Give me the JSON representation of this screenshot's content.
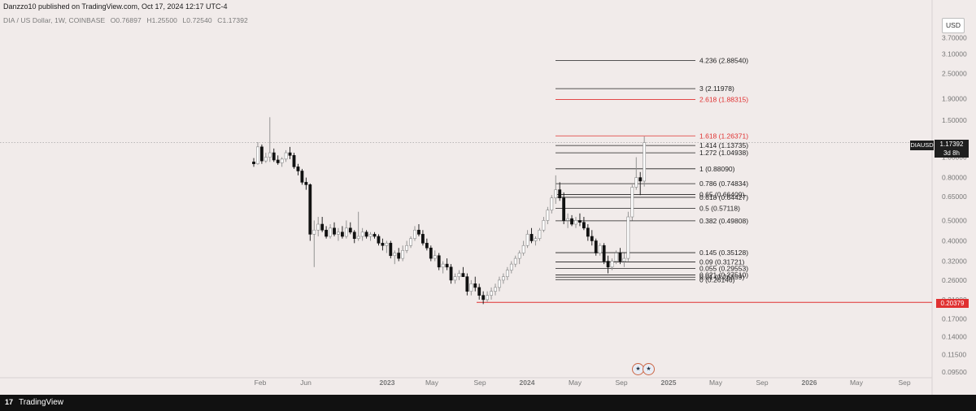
{
  "header": {
    "published": "Danzzo10 published on TradingView.com, Oct 17, 2024 12:17 UTC-4",
    "symbol_line": "DIA / US Dollar, 1W, COINBASE",
    "open": "O0.76897",
    "high": "H1.25500",
    "low": "L0.72540",
    "close": "C1.17392"
  },
  "currency_button": "USD",
  "price_tag": {
    "symbol": "DIAUSD",
    "value": "1.17392",
    "countdown": "3d 8h"
  },
  "low_tag": "0.20379",
  "footer": {
    "brand": "TradingView",
    "logo": "17"
  },
  "colors": {
    "bg": "#f1ebea",
    "candle": "#1a1a1a",
    "hollow": "#ffffff",
    "red": "#e03131",
    "fib": "#1f1f1f"
  },
  "chart_data": {
    "type": "candlestick",
    "y_scale": "log",
    "ylim": [
      0.08,
      4.2
    ],
    "y_ticks": [
      "3.70000",
      "3.10000",
      "2.50000",
      "1.90000",
      "1.50000",
      "1.00000",
      "0.80000",
      "0.65000",
      "0.50000",
      "0.40000",
      "0.32000",
      "0.26000",
      "0.21000",
      "0.17000",
      "0.14000",
      "0.11500",
      "0.09500"
    ],
    "x_ticks": [
      "Feb",
      "Jun",
      "2023",
      "May",
      "Sep",
      "2024",
      "May",
      "Sep",
      "2025",
      "May",
      "Sep",
      "2026",
      "May",
      "Sep"
    ],
    "current_price": 1.17392,
    "support_level": 0.20379,
    "fib_levels": [
      {
        "label": "4.236 (2.88540)",
        "value": 2.8854,
        "color": "#1f1f1f"
      },
      {
        "label": "3 (2.11978)",
        "value": 2.11978,
        "color": "#1f1f1f"
      },
      {
        "label": "2.618 (1.88315)",
        "value": 1.88315,
        "color": "#e03131"
      },
      {
        "label": "1.618 (1.26371)",
        "value": 1.26371,
        "color": "#e03131"
      },
      {
        "label": "1.414 (1.13735)",
        "value": 1.13735,
        "color": "#1f1f1f"
      },
      {
        "label": "1.272 (1.04938)",
        "value": 1.04938,
        "color": "#1f1f1f"
      },
      {
        "label": "1 (0.88090)",
        "value": 0.8809,
        "color": "#1f1f1f"
      },
      {
        "label": "0.786 (0.74834)",
        "value": 0.74834,
        "color": "#1f1f1f"
      },
      {
        "label": "0.65 (0.66409)",
        "value": 0.66409,
        "color": "#1f1f1f"
      },
      {
        "label": "0.618 (0.64427)",
        "value": 0.64427,
        "color": "#1f1f1f"
      },
      {
        "label": "0.5 (0.57118)",
        "value": 0.57118,
        "color": "#1f1f1f"
      },
      {
        "label": "0.382 (0.49808)",
        "value": 0.49808,
        "color": "#1f1f1f"
      },
      {
        "label": "0.145 (0.35128)",
        "value": 0.35128,
        "color": "#1f1f1f"
      },
      {
        "label": "0.09 (0.31721)",
        "value": 0.31721,
        "color": "#1f1f1f"
      },
      {
        "label": "0.055 (0.29553)",
        "value": 0.29553,
        "color": "#1f1f1f"
      },
      {
        "label": "0.021 (0.27510)",
        "value": 0.2751,
        "color": "#1f1f1f"
      },
      {
        "label": "0.01 (0.26859)",
        "value": 0.26859,
        "color": "#1f1f1f"
      },
      {
        "label": "0 (0.26146)",
        "value": 0.26146,
        "color": "#1f1f1f"
      }
    ],
    "candles_ohlc": [
      [
        0.95,
        0.99,
        0.9,
        0.93
      ],
      [
        0.93,
        1.18,
        0.92,
        1.12
      ],
      [
        1.12,
        1.15,
        0.93,
        0.96
      ],
      [
        0.96,
        1.05,
        0.94,
        1.0
      ],
      [
        1.0,
        1.55,
        0.95,
        1.05
      ],
      [
        1.05,
        1.1,
        0.95,
        0.97
      ],
      [
        0.97,
        1.02,
        0.92,
        0.94
      ],
      [
        0.94,
        1.0,
        0.9,
        0.98
      ],
      [
        0.98,
        1.08,
        0.95,
        1.05
      ],
      [
        1.05,
        1.12,
        0.98,
        1.02
      ],
      [
        1.02,
        1.05,
        0.88,
        0.9
      ],
      [
        0.9,
        0.93,
        0.82,
        0.86
      ],
      [
        0.86,
        0.88,
        0.74,
        0.76
      ],
      [
        0.76,
        0.8,
        0.7,
        0.74
      ],
      [
        0.74,
        0.75,
        0.4,
        0.43
      ],
      [
        0.43,
        0.5,
        0.3,
        0.45
      ],
      [
        0.45,
        0.52,
        0.42,
        0.48
      ],
      [
        0.48,
        0.52,
        0.44,
        0.45
      ],
      [
        0.45,
        0.47,
        0.41,
        0.42
      ],
      [
        0.42,
        0.48,
        0.41,
        0.46
      ],
      [
        0.46,
        0.49,
        0.42,
        0.43
      ],
      [
        0.43,
        0.46,
        0.4,
        0.44
      ],
      [
        0.44,
        0.47,
        0.41,
        0.42
      ],
      [
        0.42,
        0.5,
        0.41,
        0.46
      ],
      [
        0.46,
        0.49,
        0.43,
        0.44
      ],
      [
        0.44,
        0.45,
        0.39,
        0.41
      ],
      [
        0.41,
        0.55,
        0.4,
        0.42
      ],
      [
        0.42,
        0.46,
        0.4,
        0.44
      ],
      [
        0.44,
        0.45,
        0.41,
        0.42
      ],
      [
        0.42,
        0.44,
        0.4,
        0.43
      ],
      [
        0.43,
        0.44,
        0.41,
        0.42
      ],
      [
        0.42,
        0.43,
        0.38,
        0.39
      ],
      [
        0.39,
        0.41,
        0.36,
        0.38
      ],
      [
        0.38,
        0.4,
        0.35,
        0.39
      ],
      [
        0.39,
        0.4,
        0.33,
        0.34
      ],
      [
        0.34,
        0.36,
        0.31,
        0.35
      ],
      [
        0.35,
        0.37,
        0.32,
        0.33
      ],
      [
        0.33,
        0.38,
        0.32,
        0.36
      ],
      [
        0.36,
        0.4,
        0.35,
        0.38
      ],
      [
        0.38,
        0.42,
        0.37,
        0.41
      ],
      [
        0.41,
        0.47,
        0.4,
        0.45
      ],
      [
        0.45,
        0.48,
        0.42,
        0.43
      ],
      [
        0.43,
        0.45,
        0.38,
        0.39
      ],
      [
        0.39,
        0.41,
        0.36,
        0.37
      ],
      [
        0.37,
        0.38,
        0.32,
        0.33
      ],
      [
        0.33,
        0.36,
        0.32,
        0.34
      ],
      [
        0.34,
        0.35,
        0.29,
        0.3
      ],
      [
        0.3,
        0.32,
        0.28,
        0.31
      ],
      [
        0.31,
        0.33,
        0.29,
        0.3
      ],
      [
        0.3,
        0.31,
        0.25,
        0.26
      ],
      [
        0.26,
        0.28,
        0.25,
        0.27
      ],
      [
        0.27,
        0.29,
        0.26,
        0.28
      ],
      [
        0.28,
        0.3,
        0.27,
        0.27
      ],
      [
        0.27,
        0.28,
        0.22,
        0.23
      ],
      [
        0.23,
        0.26,
        0.22,
        0.25
      ],
      [
        0.25,
        0.27,
        0.23,
        0.24
      ],
      [
        0.24,
        0.25,
        0.21,
        0.22
      ],
      [
        0.22,
        0.23,
        0.2,
        0.21
      ],
      [
        0.21,
        0.23,
        0.205,
        0.22
      ],
      [
        0.22,
        0.24,
        0.21,
        0.23
      ],
      [
        0.23,
        0.25,
        0.22,
        0.24
      ],
      [
        0.24,
        0.27,
        0.23,
        0.26
      ],
      [
        0.26,
        0.28,
        0.25,
        0.27
      ],
      [
        0.27,
        0.3,
        0.26,
        0.29
      ],
      [
        0.29,
        0.32,
        0.28,
        0.31
      ],
      [
        0.31,
        0.34,
        0.3,
        0.33
      ],
      [
        0.33,
        0.36,
        0.31,
        0.35
      ],
      [
        0.35,
        0.4,
        0.34,
        0.38
      ],
      [
        0.38,
        0.45,
        0.37,
        0.43
      ],
      [
        0.43,
        0.46,
        0.39,
        0.4
      ],
      [
        0.4,
        0.42,
        0.38,
        0.41
      ],
      [
        0.41,
        0.46,
        0.4,
        0.45
      ],
      [
        0.45,
        0.52,
        0.44,
        0.5
      ],
      [
        0.5,
        0.58,
        0.48,
        0.56
      ],
      [
        0.56,
        0.66,
        0.54,
        0.64
      ],
      [
        0.64,
        0.82,
        0.6,
        0.7
      ],
      [
        0.7,
        0.76,
        0.62,
        0.64
      ],
      [
        0.64,
        0.68,
        0.48,
        0.5
      ],
      [
        0.5,
        0.54,
        0.46,
        0.51
      ],
      [
        0.51,
        0.53,
        0.47,
        0.48
      ],
      [
        0.48,
        0.52,
        0.46,
        0.5
      ],
      [
        0.5,
        0.54,
        0.47,
        0.49
      ],
      [
        0.49,
        0.52,
        0.45,
        0.46
      ],
      [
        0.46,
        0.48,
        0.4,
        0.42
      ],
      [
        0.42,
        0.45,
        0.38,
        0.4
      ],
      [
        0.4,
        0.41,
        0.34,
        0.35
      ],
      [
        0.35,
        0.39,
        0.34,
        0.38
      ],
      [
        0.38,
        0.39,
        0.31,
        0.32
      ],
      [
        0.32,
        0.34,
        0.28,
        0.3
      ],
      [
        0.3,
        0.33,
        0.29,
        0.32
      ],
      [
        0.32,
        0.36,
        0.31,
        0.35
      ],
      [
        0.35,
        0.37,
        0.31,
        0.32
      ],
      [
        0.32,
        0.35,
        0.3,
        0.33
      ],
      [
        0.33,
        0.55,
        0.32,
        0.52
      ],
      [
        0.52,
        0.74,
        0.5,
        0.72
      ],
      [
        0.72,
        1.0,
        0.7,
        0.8
      ],
      [
        0.8,
        0.85,
        0.66,
        0.77
      ],
      [
        0.77,
        1.255,
        0.725,
        1.174
      ]
    ]
  }
}
